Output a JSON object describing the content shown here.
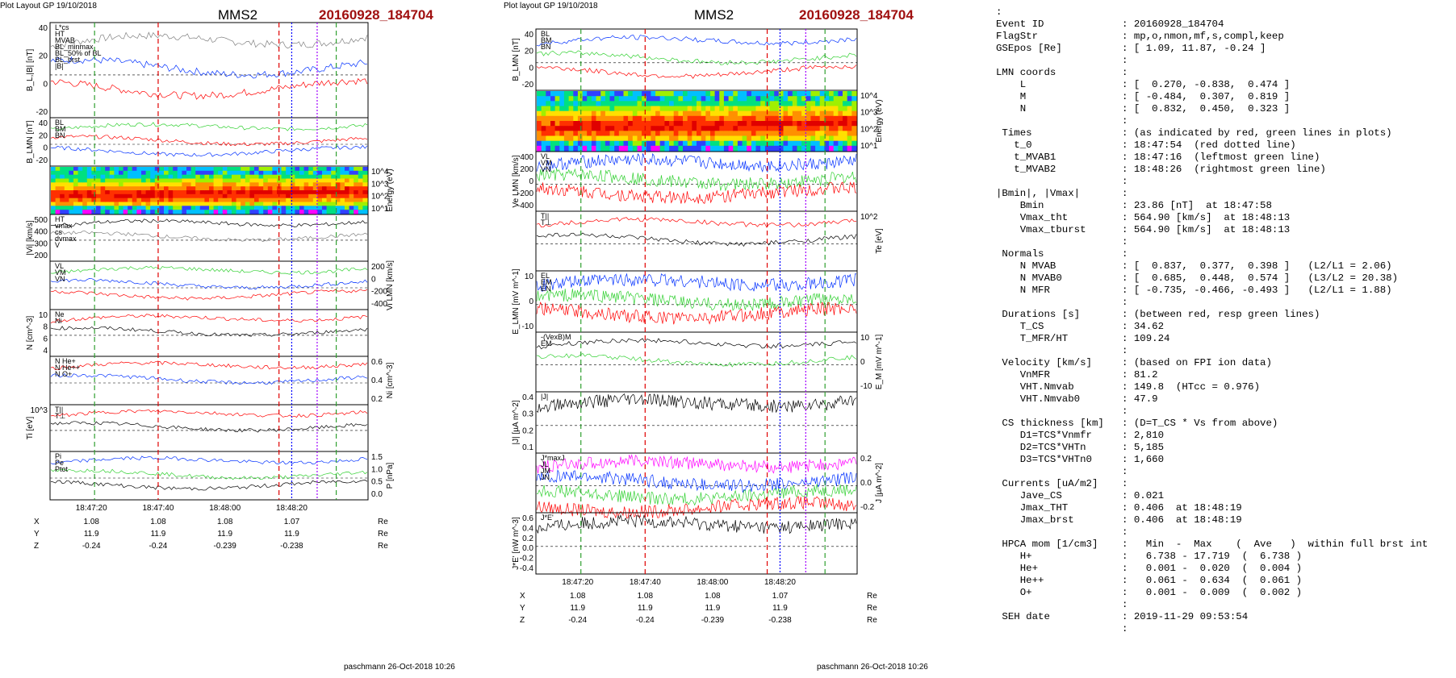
{
  "panel_left": {
    "header_tag": "Plot Layout GP 19/10/2018",
    "title": "MMS2",
    "event": "20160928_184704",
    "footer": "paschmann 26-Oct-2018 10:26",
    "time_ticks": [
      "18:47:20",
      "18:47:40",
      "18:48:00",
      "18:48:20"
    ],
    "coord_rows": [
      {
        "label": "X",
        "values": [
          "1.08",
          "1.08",
          "1.08",
          "1.07"
        ],
        "unit": "Re"
      },
      {
        "label": "Y",
        "values": [
          "11.9",
          "11.9",
          "11.9",
          "11.9"
        ],
        "unit": "Re"
      },
      {
        "label": "Z",
        "values": [
          "-0.24",
          "-0.24",
          "-0.239",
          "-0.238"
        ],
        "unit": "Re"
      }
    ],
    "panels": [
      {
        "ylabel": "B_L,|B| [nT]",
        "ticks": [
          "40",
          "20",
          "0",
          "-20"
        ],
        "legend": [
          "L*cs",
          "HT",
          "MVAB",
          "BL_minmax",
          "BL_50% of BL",
          "BL_brst",
          "|B|"
        ]
      },
      {
        "ylabel": "B_LMN [nT]",
        "ticks": [
          "40",
          "20",
          "0",
          "-20"
        ],
        "legend": [
          "BL",
          "BM",
          "BN"
        ]
      },
      {
        "ylabel": "Energy (eV)",
        "ticks": [
          "10^4",
          "10^3",
          "10^2",
          "10^1"
        ],
        "legend": []
      },
      {
        "ylabel": "|Vi| [km/s]",
        "ticks": [
          "500",
          "400",
          "300",
          "200"
        ],
        "legend": [
          "HT",
          "vmax",
          "cs",
          "dvmax",
          "V"
        ]
      },
      {
        "ylabel": "Vi LMN [km/s]",
        "ticks": [
          "200",
          "0",
          "-200",
          "-400"
        ],
        "legend": [
          "VL",
          "VM",
          "VN"
        ]
      },
      {
        "ylabel": "N [cm^-3]",
        "ticks": [
          "10",
          "8",
          "6",
          "4"
        ],
        "legend": [
          "Ne",
          "Ni"
        ]
      },
      {
        "ylabel": "Ni [cm^-3]",
        "ticks": [
          "0.6",
          "0.4",
          "0.2"
        ],
        "legend": [
          "N He+",
          "N He++",
          "N O+"
        ]
      },
      {
        "ylabel": "Ti [eV]",
        "ticks": [
          "10^3"
        ],
        "legend": [
          "T||",
          "T⊥"
        ]
      },
      {
        "ylabel": "P [nPa]",
        "ticks": [
          "1.5",
          "1.0",
          "0.5",
          "0.0"
        ],
        "legend": [
          "Pi",
          "Pe",
          "Ptot"
        ]
      }
    ]
  },
  "panel_right": {
    "header_tag": "Plot layout GP 19/10/2018",
    "title": "MMS2",
    "event": "20160928_184704",
    "footer": "paschmann 26-Oct-2018 10:26",
    "time_ticks": [
      "18:47:20",
      "18:47:40",
      "18:48:00",
      "18:48:20"
    ],
    "coord_rows": [
      {
        "label": "X",
        "values": [
          "1.08",
          "1.08",
          "1.08",
          "1.07"
        ],
        "unit": "Re"
      },
      {
        "label": "Y",
        "values": [
          "11.9",
          "11.9",
          "11.9",
          "11.9"
        ],
        "unit": "Re"
      },
      {
        "label": "Z",
        "values": [
          "-0.24",
          "-0.24",
          "-0.239",
          "-0.238"
        ],
        "unit": "Re"
      }
    ],
    "panels": [
      {
        "ylabel": "B_LMN [nT]",
        "ticks": [
          "40",
          "20",
          "0",
          "-20"
        ],
        "legend": [
          "BL",
          "BM",
          "BN"
        ]
      },
      {
        "ylabel": "Energy (eV)",
        "ticks": [
          "10^4",
          "10^3",
          "10^2",
          "10^1"
        ],
        "legend": []
      },
      {
        "ylabel": "Ve LMN [km/s]",
        "ticks": [
          "400",
          "200",
          "0",
          "-200",
          "-400"
        ],
        "legend": [
          "VL",
          "VM",
          "VN"
        ]
      },
      {
        "ylabel": "Te [eV]",
        "ticks": [
          "10^2"
        ],
        "legend": [
          "T||",
          "T⊥"
        ]
      },
      {
        "ylabel": "E_LMN [mV m^-1]",
        "ticks": [
          "10",
          "0",
          "-10"
        ],
        "legend": [
          "EL",
          "EM",
          "EN"
        ]
      },
      {
        "ylabel": "E_M [mV m^-1]",
        "ticks": [
          "10",
          "0",
          "-10"
        ],
        "legend": [
          "-(VexB)M",
          "EM"
        ]
      },
      {
        "ylabel": "|J| [µA m^-2]",
        "ticks": [
          "0.4",
          "0.3",
          "0.2",
          "0.1"
        ],
        "legend": [
          "|J|"
        ]
      },
      {
        "ylabel": "J [µA m^-2]",
        "ticks": [
          "0.2",
          "0.0",
          "-0.2"
        ],
        "legend": [
          "J*maxJ",
          "JL",
          "JM",
          "JN"
        ]
      },
      {
        "ylabel": "J*E' [nW m^-3]",
        "ticks": [
          "0.6",
          "0.4",
          "0.2",
          "0.0",
          "-0.2",
          "-0.4"
        ],
        "legend": [
          "J*E'"
        ]
      }
    ]
  },
  "info_lines": [
    [
      ":",
      ""
    ],
    [
      "Event ID",
      ": 20160928_184704"
    ],
    [
      "FlagStr",
      ": mp,o,nmon,mf,s,compl,keep"
    ],
    [
      "GSEpos [Re]",
      ": [ 1.09, 11.87, -0.24 ]"
    ],
    [
      "",
      ":"
    ],
    [
      "LMN coords",
      ":"
    ],
    [
      "    L",
      ": [  0.270, -0.838,  0.474 ]"
    ],
    [
      "    M",
      ": [ -0.484,  0.307,  0.819 ]"
    ],
    [
      "    N",
      ": [  0.832,  0.450,  0.323 ]"
    ],
    [
      "",
      ":"
    ],
    [
      " Times",
      ": (as indicated by red, green lines in plots)"
    ],
    [
      "   t_0",
      ": 18:47:54  (red dotted line)"
    ],
    [
      "   t_MVAB1",
      ": 18:47:16  (leftmost green line)"
    ],
    [
      "   t_MVAB2",
      ": 18:48:26  (rightmost green line)"
    ],
    [
      "",
      ":"
    ],
    [
      "|Bmin|, |Vmax|",
      ":"
    ],
    [
      "    Bmin",
      ": 23.86 [nT]  at 18:47:58"
    ],
    [
      "    Vmax_tht",
      ": 564.90 [km/s]  at 18:48:13"
    ],
    [
      "    Vmax_tburst",
      ": 564.90 [km/s]  at 18:48:13"
    ],
    [
      "",
      ":"
    ],
    [
      " Normals",
      ":"
    ],
    [
      "    N MVAB",
      ": [  0.837,  0.377,  0.398 ]   (L2/L1 = 2.06)"
    ],
    [
      "    N MVAB0",
      ": [  0.685,  0.448,  0.574 ]   (L3/L2 = 20.38)"
    ],
    [
      "    N MFR",
      ": [ -0.735, -0.466, -0.493 ]   (L2/L1 = 1.88)"
    ],
    [
      "",
      ":"
    ],
    [
      " Durations [s]",
      ": (between red, resp green lines)"
    ],
    [
      "    T_CS",
      ": 34.62"
    ],
    [
      "    T_MFR/HT",
      ": 109.24"
    ],
    [
      "",
      ":"
    ],
    [
      " Velocity [km/s]",
      ": (based on FPI ion data)"
    ],
    [
      "    VnMFR",
      ": 81.2"
    ],
    [
      "    VHT.Nmvab",
      ": 149.8  (HTcc = 0.976)"
    ],
    [
      "    VHT.Nmvab0",
      ": 47.9"
    ],
    [
      "",
      ":"
    ],
    [
      " CS thickness [km]",
      ": (D=T_CS * Vs from above)"
    ],
    [
      "    D1=TCS*Vnmfr",
      ": 2,810"
    ],
    [
      "    D2=TCS*VHTn",
      ": 5,185"
    ],
    [
      "    D3=TCS*VHTn0",
      ": 1,660"
    ],
    [
      "",
      ":"
    ],
    [
      " Currents [uA/m2]",
      ":"
    ],
    [
      "    Jave_CS",
      ": 0.021"
    ],
    [
      "    Jmax_THT",
      ": 0.406  at 18:48:19"
    ],
    [
      "    Jmax_brst",
      ": 0.406  at 18:48:19"
    ],
    [
      "",
      ":"
    ],
    [
      " HPCA mom [1/cm3]",
      ":   Min  -  Max    (  Ave   )  within full brst int"
    ],
    [
      "    H+",
      ":   6.738 - 17.719  (  6.738 )"
    ],
    [
      "    He+",
      ":   0.001 -  0.020  (  0.004 )"
    ],
    [
      "    He++",
      ":   0.061 -  0.634  (  0.061 )"
    ],
    [
      "    O+",
      ":   0.001 -  0.009  (  0.002 )"
    ],
    [
      "",
      ":"
    ],
    [
      " SEH date",
      ": 2019-11-29 09:53:54"
    ],
    [
      "",
      ":"
    ]
  ],
  "chart_data": [
    {
      "type": "line",
      "title": "MMS2",
      "subtitle": "20160928_184704",
      "x_ticks": [
        "18:47:20",
        "18:47:40",
        "18:48:00",
        "18:48:20"
      ],
      "panel": "B_L,|B| [nT]",
      "ylim": [
        -35,
        45
      ],
      "series": [
        {
          "name": "|B|",
          "values": [
            36,
            36,
            37,
            37,
            38,
            37,
            36,
            36,
            37,
            38,
            39,
            38,
            36,
            38,
            40,
            41,
            42,
            41,
            40,
            41,
            42,
            41,
            40,
            38
          ]
        },
        {
          "name": "BL_brst",
          "values": [
            -30,
            -31,
            -30,
            -29,
            -28,
            -27,
            -25,
            -24,
            -22,
            -18,
            -12,
            -4,
            2,
            6,
            10,
            13,
            9,
            4,
            -1,
            -4,
            2,
            8,
            2,
            -4
          ]
        }
      ]
    },
    {
      "type": "line",
      "panel": "N [cm^-3]",
      "ylim": [
        3,
        11
      ],
      "series": [
        {
          "name": "Ne",
          "values": [
            4,
            4,
            4.5,
            5,
            5.5,
            6,
            6.5,
            7,
            7.5,
            8.5,
            9,
            8,
            7,
            8.5,
            9,
            7,
            6,
            8,
            9,
            7,
            8.5,
            9,
            8,
            8
          ]
        },
        {
          "name": "Ni",
          "values": [
            4,
            4.2,
            4.5,
            5,
            5.7,
            6.2,
            6.7,
            7.2,
            7.6,
            8.8,
            9.3,
            8.3,
            7.3,
            8.8,
            9.2,
            7.2,
            6.3,
            8.2,
            9.2,
            7.3,
            8.7,
            9.3,
            8.3,
            8.3
          ]
        }
      ]
    },
    {
      "type": "line",
      "panel": "Ni [cm^-3]",
      "ylim": [
        0,
        0.65
      ],
      "series": [
        {
          "name": "N He++",
          "values": [
            0.1,
            0.15,
            0.25,
            0.62,
            0.42,
            0.5,
            0.35,
            0.25,
            0.62
          ]
        }
      ]
    }
  ]
}
